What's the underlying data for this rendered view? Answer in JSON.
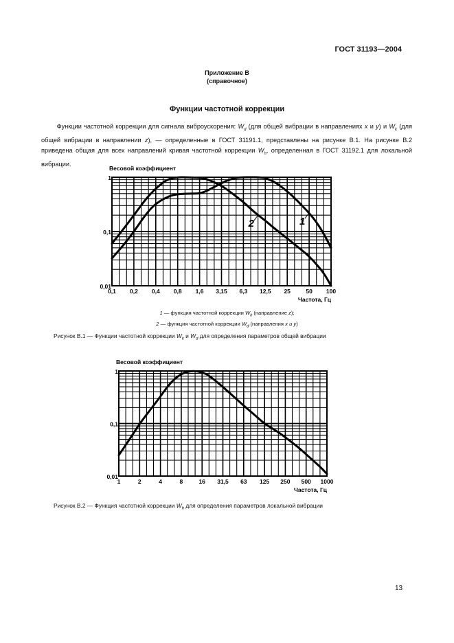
{
  "header": {
    "standard": "ГОСТ 31193—2004"
  },
  "annex": {
    "title": "Приложение В",
    "type": "(справочное)"
  },
  "section_title": "Функции частотной коррекции",
  "paragraph": {
    "p1": "Функции частотной коррекции для сигнала виброускорения: ",
    "w": "W",
    "d": "d",
    "p2": " (для общей вибрации в направлениях ",
    "x": "x",
    "and": " и ",
    "y": "y",
    "p3": ") и ",
    "k": "k",
    "p4": " (для общей вибрации в направлении ",
    "z": "z",
    "p5": "), — определенные в ГОСТ 31191.1, представлены на рисунке В.1. На рисунке В.2 приведена общая для всех направлений кривая частотной коррекции ",
    "h": "h",
    "p6": ", определенная в ГОСТ 31192.1 для локальной вибрации."
  },
  "figure1": {
    "legend": [
      {
        "num": "1",
        "text": " — функция частотной коррекции ",
        "sub": "k",
        "tail": " (направление ",
        "dir": "z",
        "end": ");"
      },
      {
        "num": "2",
        "text": " — функция частотной коррекции ",
        "sub": "d",
        "tail": " (направления ",
        "dir": "x и y",
        "end": ")"
      }
    ],
    "caption": {
      "a": "Рисунок В.1 — Функции частотной коррекции ",
      "k": "k",
      "mid": " и ",
      "d": "d",
      "b": " для определения параметров общей вибрации"
    }
  },
  "figure2": {
    "caption": {
      "a": "Рисунок В.2 — Функция частотной коррекции ",
      "h": "h",
      "b": " для определения параметров локальной вибрации"
    }
  },
  "page_number": "13",
  "chart_data": [
    {
      "type": "line",
      "ylabel": "Весовой коэффициент",
      "xlabel": "Частота, Гц",
      "xscale": "log",
      "yscale": "log",
      "xlim": [
        0.1,
        100
      ],
      "ylim": [
        0.01,
        1
      ],
      "xticks": [
        "0,1",
        "0,2",
        "0,4",
        "0,8",
        "1,6",
        "3,15",
        "6,3",
        "12,5",
        "25",
        "50",
        "100"
      ],
      "yticks": [
        "0,01",
        "0,1",
        "1"
      ],
      "grid": true,
      "series": [
        {
          "name": "1",
          "x": [
            0.1,
            0.15,
            0.2,
            0.3,
            0.4,
            0.6,
            0.8,
            1.2,
            1.6,
            2,
            2.5,
            3.15,
            4,
            5,
            6.3,
            8,
            10,
            12.5,
            16,
            20,
            25,
            31.5,
            40,
            50,
            63,
            80,
            100
          ],
          "y": [
            0.032,
            0.06,
            0.1,
            0.22,
            0.33,
            0.45,
            0.49,
            0.5,
            0.5,
            0.56,
            0.66,
            0.78,
            0.9,
            0.98,
            1,
            1,
            1,
            0.97,
            0.85,
            0.7,
            0.55,
            0.42,
            0.3,
            0.22,
            0.15,
            0.09,
            0.05
          ]
        },
        {
          "name": "2",
          "x": [
            0.1,
            0.15,
            0.2,
            0.3,
            0.4,
            0.5,
            0.6,
            0.8,
            1,
            1.6,
            2,
            3.15,
            4,
            6.3,
            8,
            10,
            12.5,
            16,
            25,
            40,
            50,
            63,
            80,
            100
          ],
          "y": [
            0.06,
            0.12,
            0.2,
            0.42,
            0.62,
            0.8,
            0.93,
            1,
            1,
            0.98,
            0.93,
            0.7,
            0.56,
            0.35,
            0.26,
            0.2,
            0.16,
            0.12,
            0.075,
            0.045,
            0.035,
            0.025,
            0.017,
            0.01
          ]
        }
      ]
    },
    {
      "type": "line",
      "ylabel": "Весовой коэффициент",
      "xlabel": "Частота, Гц",
      "xscale": "log",
      "yscale": "log",
      "xlim": [
        1,
        1000
      ],
      "ylim": [
        0.01,
        1
      ],
      "xticks": [
        "1",
        "2",
        "4",
        "8",
        "16",
        "31,5",
        "63",
        "125",
        "250",
        "500",
        "1000"
      ],
      "yticks": [
        "0,01",
        "0,1",
        "1"
      ],
      "grid": true,
      "series": [
        {
          "x": [
            1,
            1.5,
            2,
            3,
            4,
            5,
            6.3,
            8,
            10,
            12.5,
            16,
            20,
            31.5,
            50,
            63,
            100,
            125,
            200,
            250,
            400,
            500,
            800,
            1000
          ],
          "y": [
            0.025,
            0.055,
            0.1,
            0.2,
            0.33,
            0.5,
            0.7,
            0.88,
            0.98,
            1,
            0.94,
            0.82,
            0.5,
            0.29,
            0.22,
            0.13,
            0.1,
            0.068,
            0.055,
            0.034,
            0.026,
            0.015,
            0.011
          ]
        }
      ]
    }
  ]
}
